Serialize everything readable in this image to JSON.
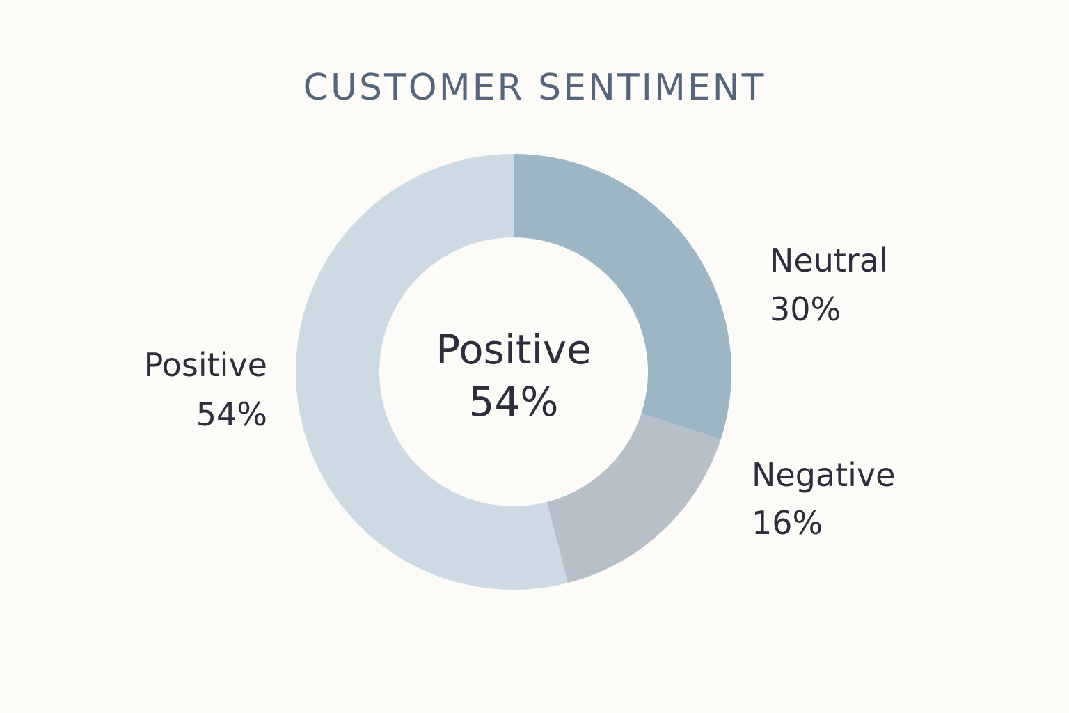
{
  "chart_data": {
    "type": "pie",
    "variant": "donut",
    "title": "CUSTOMER SENTIMENT",
    "slices": [
      {
        "label": "Neutral",
        "value": 30,
        "display": "30%",
        "color": "#9cb6c6"
      },
      {
        "label": "Negative",
        "value": 16,
        "display": "16%",
        "color": "#b7bfc9"
      },
      {
        "label": "Positive",
        "value": 54,
        "display": "54%",
        "color": "#cbdae3"
      }
    ],
    "center_label": {
      "label": "Positive",
      "display": "54%"
    },
    "legend": "none"
  }
}
